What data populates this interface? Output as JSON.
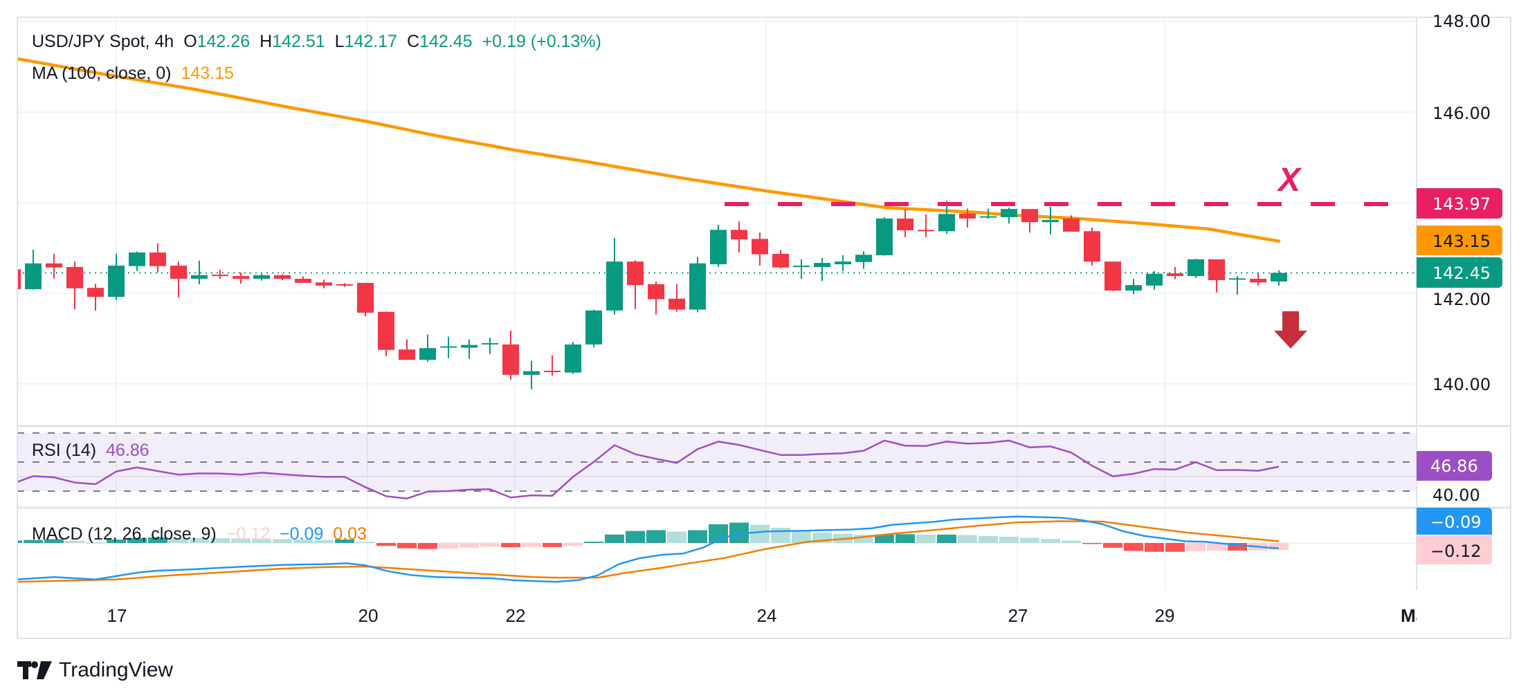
{
  "header": {
    "symbol": "USD/JPY Spot, 4h",
    "open_label": "O",
    "open": "142.26",
    "high_label": "H",
    "high": "142.51",
    "low_label": "L",
    "low": "142.17",
    "close_label": "C",
    "close": "142.45",
    "change": "+0.19 (+0.13%)"
  },
  "ma_legend": {
    "label": "MA (100, close, 0)",
    "value": "143.15"
  },
  "rsi_legend": {
    "label": "RSI (14)",
    "value": "46.86"
  },
  "macd_legend": {
    "label": "MACD (12, 26, close, 9)",
    "hist": "−0.12",
    "macd": "−0.09",
    "signal": "0.03"
  },
  "price_axis": [
    "148.00",
    "146.00",
    "142.00",
    "140.00"
  ],
  "rsi_axis": [
    "40.00"
  ],
  "badges": {
    "resistance": "143.97",
    "ma": "143.15",
    "last": "142.45",
    "rsi": "46.86",
    "macd": "−0.09",
    "hist": "−0.12"
  },
  "annotation": {
    "mark": "X",
    "arrow": "down-arrow-icon"
  },
  "time_axis": [
    "17",
    "20",
    "22",
    "24",
    "27",
    "29",
    "Ma"
  ],
  "branding": {
    "name": "TradingView"
  },
  "colors": {
    "up": "#089981",
    "down": "#f23645",
    "ma": "#ff9800",
    "resistance": "#e91e63",
    "rsi": "#9c4fc4",
    "macd": "#2196f3",
    "signal": "#f57c00",
    "arrow": "#c62f3b"
  },
  "chart_data": {
    "type": "candlestick",
    "title": "USD/JPY Spot, 4h",
    "ylim": [
      139.5,
      148.2
    ],
    "time_ticks": [
      [
        5.0,
        "17"
      ],
      [
        17.1,
        "20"
      ],
      [
        24.2,
        "22"
      ],
      [
        36.3,
        "24"
      ],
      [
        48.4,
        "27"
      ],
      [
        55.5,
        "29"
      ],
      [
        68.2,
        "Ma"
      ]
    ],
    "ohlc": [
      [
        142.53,
        142.55,
        142.07,
        142.09
      ],
      [
        142.09,
        142.96,
        142.08,
        142.66
      ],
      [
        142.66,
        142.87,
        142.32,
        142.57
      ],
      [
        142.58,
        142.7,
        141.65,
        142.11
      ],
      [
        142.12,
        142.21,
        141.62,
        141.92
      ],
      [
        141.92,
        142.87,
        141.85,
        142.61
      ],
      [
        142.6,
        142.92,
        142.49,
        142.9
      ],
      [
        142.9,
        143.1,
        142.46,
        142.6
      ],
      [
        142.61,
        142.7,
        141.91,
        142.32
      ],
      [
        142.32,
        142.72,
        142.2,
        142.4
      ],
      [
        142.41,
        142.52,
        142.32,
        142.38
      ],
      [
        142.38,
        142.46,
        142.21,
        142.32
      ],
      [
        142.32,
        142.43,
        142.28,
        142.4
      ],
      [
        142.4,
        142.42,
        142.29,
        142.32
      ],
      [
        142.32,
        142.37,
        142.23,
        142.23
      ],
      [
        142.24,
        142.3,
        142.11,
        142.17
      ],
      [
        142.2,
        142.22,
        142.14,
        142.17
      ],
      [
        142.23,
        142.23,
        141.49,
        141.57
      ],
      [
        141.59,
        141.6,
        140.61,
        140.75
      ],
      [
        140.76,
        140.98,
        140.53,
        140.53
      ],
      [
        140.53,
        141.09,
        140.49,
        140.79
      ],
      [
        140.8,
        141.04,
        140.57,
        140.83
      ],
      [
        140.8,
        140.98,
        140.55,
        140.86
      ],
      [
        140.88,
        141.02,
        140.66,
        140.9
      ],
      [
        140.87,
        141.18,
        140.09,
        140.2
      ],
      [
        140.2,
        140.51,
        139.88,
        140.28
      ],
      [
        140.29,
        140.63,
        140.18,
        140.26
      ],
      [
        140.25,
        140.93,
        140.22,
        140.87
      ],
      [
        140.87,
        141.64,
        140.81,
        141.62
      ],
      [
        141.62,
        143.22,
        141.53,
        142.7
      ],
      [
        142.7,
        142.73,
        141.65,
        142.18
      ],
      [
        142.2,
        142.26,
        141.53,
        141.87
      ],
      [
        141.88,
        142.2,
        141.59,
        141.64
      ],
      [
        141.64,
        142.8,
        141.58,
        142.66
      ],
      [
        142.64,
        143.51,
        142.58,
        143.4
      ],
      [
        143.4,
        143.59,
        142.9,
        143.19
      ],
      [
        143.2,
        143.34,
        142.61,
        142.86
      ],
      [
        142.87,
        142.96,
        142.55,
        142.57
      ],
      [
        142.58,
        142.75,
        142.32,
        142.61
      ],
      [
        142.58,
        142.78,
        142.27,
        142.67
      ],
      [
        142.64,
        142.84,
        142.49,
        142.7
      ],
      [
        142.69,
        142.93,
        142.54,
        142.85
      ],
      [
        142.84,
        143.68,
        142.83,
        143.65
      ],
      [
        143.65,
        143.86,
        143.24,
        143.39
      ],
      [
        143.4,
        143.74,
        143.24,
        143.38
      ],
      [
        143.37,
        144.04,
        143.31,
        143.75
      ],
      [
        143.76,
        143.87,
        143.45,
        143.65
      ],
      [
        143.67,
        143.87,
        143.65,
        143.7
      ],
      [
        143.68,
        143.89,
        143.54,
        143.86
      ],
      [
        143.86,
        143.86,
        143.34,
        143.57
      ],
      [
        143.57,
        143.91,
        143.3,
        143.62
      ],
      [
        143.65,
        143.72,
        143.36,
        143.36
      ],
      [
        143.37,
        143.45,
        142.61,
        142.7
      ],
      [
        142.7,
        142.7,
        142.05,
        142.06
      ],
      [
        142.06,
        142.32,
        141.98,
        142.18
      ],
      [
        142.17,
        142.49,
        142.08,
        142.43
      ],
      [
        142.44,
        142.58,
        142.31,
        142.38
      ],
      [
        142.38,
        142.76,
        142.34,
        142.75
      ],
      [
        142.75,
        142.75,
        142.02,
        142.29
      ],
      [
        142.31,
        142.38,
        141.97,
        142.33
      ],
      [
        142.32,
        142.45,
        142.17,
        142.24
      ],
      [
        142.26,
        142.51,
        142.17,
        142.45
      ]
    ],
    "ma100": [
      [
        -0.3,
        147.22
      ],
      [
        0.2,
        147.18
      ],
      [
        4.1,
        146.86
      ],
      [
        8.8,
        146.5
      ],
      [
        13.5,
        146.09
      ],
      [
        17.1,
        145.79
      ],
      [
        20.5,
        145.47
      ],
      [
        24.2,
        145.16
      ],
      [
        27.6,
        144.91
      ],
      [
        32.3,
        144.54
      ],
      [
        36.3,
        144.26
      ],
      [
        39.3,
        144.07
      ],
      [
        42.1,
        143.89
      ],
      [
        46.3,
        143.79
      ],
      [
        48.4,
        143.72
      ],
      [
        51.0,
        143.66
      ],
      [
        54.8,
        143.53
      ],
      [
        57.6,
        143.42
      ],
      [
        61,
        143.15
      ]
    ],
    "resistance": {
      "value": 143.97,
      "from_index": 34.3
    },
    "last_price": 142.45,
    "rsi": {
      "ylim": [
        0,
        100
      ],
      "bands": [
        70,
        50,
        30
      ],
      "grid": 40,
      "values": [
        35.1,
        40.3,
        39.5,
        35.9,
        34.8,
        43.5,
        46.3,
        43.8,
        41.3,
        42.2,
        42.1,
        41.3,
        42.7,
        41.6,
        40.6,
        39.8,
        39.8,
        32.7,
        26.5,
        24.9,
        29.7,
        30.0,
        31.0,
        31.3,
        25.6,
        27.1,
        26.8,
        39.8,
        50.1,
        61.6,
        55.4,
        52.2,
        49.4,
        58.9,
        64.1,
        61.8,
        58.3,
        54.9,
        54.9,
        55.6,
        56.0,
        57.8,
        64.8,
        61.3,
        61.1,
        64.1,
        62.7,
        63.2,
        64.8,
        60.1,
        60.8,
        56.5,
        47.5,
        40.2,
        41.9,
        45.2,
        44.8,
        49.9,
        44.4,
        44.6,
        44.0,
        46.86
      ]
    },
    "macd": {
      "macd": [
        [
          -0.3,
          -0.61
        ],
        [
          0.2,
          -0.62
        ],
        [
          2,
          -0.58
        ],
        [
          4,
          -0.62
        ],
        [
          6.1,
          -0.5
        ],
        [
          7,
          -0.47
        ],
        [
          8.3,
          -0.455
        ],
        [
          10.1,
          -0.42
        ],
        [
          11.9,
          -0.39
        ],
        [
          13.2,
          -0.37
        ],
        [
          15,
          -0.36
        ],
        [
          16.1,
          -0.345
        ],
        [
          17,
          -0.38
        ],
        [
          18.1,
          -0.48
        ],
        [
          19.2,
          -0.545
        ],
        [
          20.4,
          -0.58
        ],
        [
          21.7,
          -0.59
        ],
        [
          23.1,
          -0.6
        ],
        [
          24.2,
          -0.635
        ],
        [
          26.2,
          -0.66
        ],
        [
          27.3,
          -0.63
        ],
        [
          28.2,
          -0.55
        ],
        [
          29.2,
          -0.36
        ],
        [
          30.2,
          -0.26
        ],
        [
          31.3,
          -0.2
        ],
        [
          32.3,
          -0.18
        ],
        [
          33.3,
          -0.075
        ],
        [
          34.3,
          0.1
        ],
        [
          35.3,
          0.165
        ],
        [
          36.3,
          0.196
        ],
        [
          38.3,
          0.21
        ],
        [
          40.4,
          0.23
        ],
        [
          41.4,
          0.25
        ],
        [
          42.4,
          0.31
        ],
        [
          44.4,
          0.36
        ],
        [
          45.4,
          0.4
        ],
        [
          47.4,
          0.435
        ],
        [
          48.4,
          0.45
        ],
        [
          50.5,
          0.43
        ],
        [
          51.5,
          0.39
        ],
        [
          52.5,
          0.32
        ],
        [
          53.5,
          0.2
        ],
        [
          54.5,
          0.12
        ],
        [
          55.5,
          0.075
        ],
        [
          56.5,
          0.03
        ],
        [
          57.5,
          0.02
        ],
        [
          58.6,
          -0.02
        ],
        [
          60.5,
          -0.08
        ],
        [
          61,
          -0.09
        ]
      ],
      "signal": [
        [
          -0.3,
          -0.66
        ],
        [
          0.2,
          -0.66
        ],
        [
          3.9,
          -0.63
        ],
        [
          5,
          -0.62
        ],
        [
          7.2,
          -0.56
        ],
        [
          10.6,
          -0.49
        ],
        [
          12.8,
          -0.44
        ],
        [
          15,
          -0.41
        ],
        [
          17,
          -0.4
        ],
        [
          18.4,
          -0.43
        ],
        [
          20.6,
          -0.48
        ],
        [
          22.8,
          -0.53
        ],
        [
          25.1,
          -0.58
        ],
        [
          26.2,
          -0.59
        ],
        [
          28.2,
          -0.59
        ],
        [
          29.5,
          -0.51
        ],
        [
          31.3,
          -0.42
        ],
        [
          32.9,
          -0.33
        ],
        [
          34.3,
          -0.255
        ],
        [
          36.3,
          -0.1
        ],
        [
          38.3,
          0.02
        ],
        [
          40.4,
          0.08
        ],
        [
          42.4,
          0.157
        ],
        [
          44.4,
          0.22
        ],
        [
          46.4,
          0.29
        ],
        [
          48.4,
          0.35
        ],
        [
          50.5,
          0.37
        ],
        [
          52.5,
          0.365
        ],
        [
          54.5,
          0.27
        ],
        [
          56.5,
          0.18
        ],
        [
          58.6,
          0.11
        ],
        [
          61,
          0.03
        ]
      ]
    }
  }
}
